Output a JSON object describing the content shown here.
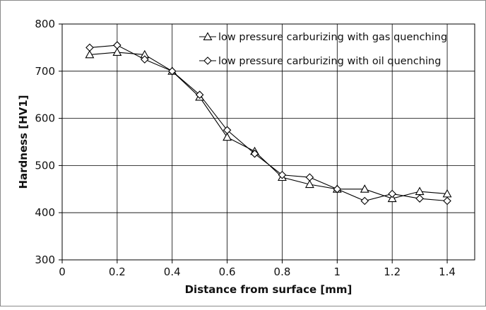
{
  "chart_data": {
    "type": "line",
    "title": "",
    "xlabel": "Distance from surface [mm]",
    "ylabel": "Hardness [HV1]",
    "xlim": [
      0,
      1.5
    ],
    "ylim": [
      300,
      800
    ],
    "xticks": [
      0,
      0.2,
      0.4,
      0.6,
      0.8,
      1,
      1.2,
      1.4
    ],
    "xtick_labels": [
      "0",
      "0.2",
      "0.4",
      "0.6",
      "0.8",
      "1",
      "1.2",
      "1.4"
    ],
    "yticks": [
      300,
      400,
      500,
      600,
      700,
      800
    ],
    "ytick_labels": [
      "300",
      "400",
      "500",
      "600",
      "700",
      "800"
    ],
    "grid": true,
    "legend_position": "top-right",
    "series": [
      {
        "name": "low pressure carburizing with gas quenching",
        "marker": "triangle",
        "x": [
          0.1,
          0.2,
          0.3,
          0.4,
          0.5,
          0.6,
          0.7,
          0.8,
          0.9,
          1.0,
          1.1,
          1.2,
          1.3,
          1.4
        ],
        "y": [
          735,
          740,
          735,
          700,
          645,
          560,
          530,
          475,
          460,
          450,
          450,
          430,
          445,
          440
        ]
      },
      {
        "name": "low pressure carburizing with oil quenching",
        "marker": "diamond",
        "x": [
          0.1,
          0.2,
          0.3,
          0.4,
          0.5,
          0.6,
          0.7,
          0.8,
          0.9,
          1.0,
          1.1,
          1.2,
          1.3,
          1.4
        ],
        "y": [
          750,
          755,
          725,
          700,
          650,
          575,
          525,
          480,
          475,
          450,
          425,
          440,
          430,
          425
        ]
      }
    ]
  }
}
